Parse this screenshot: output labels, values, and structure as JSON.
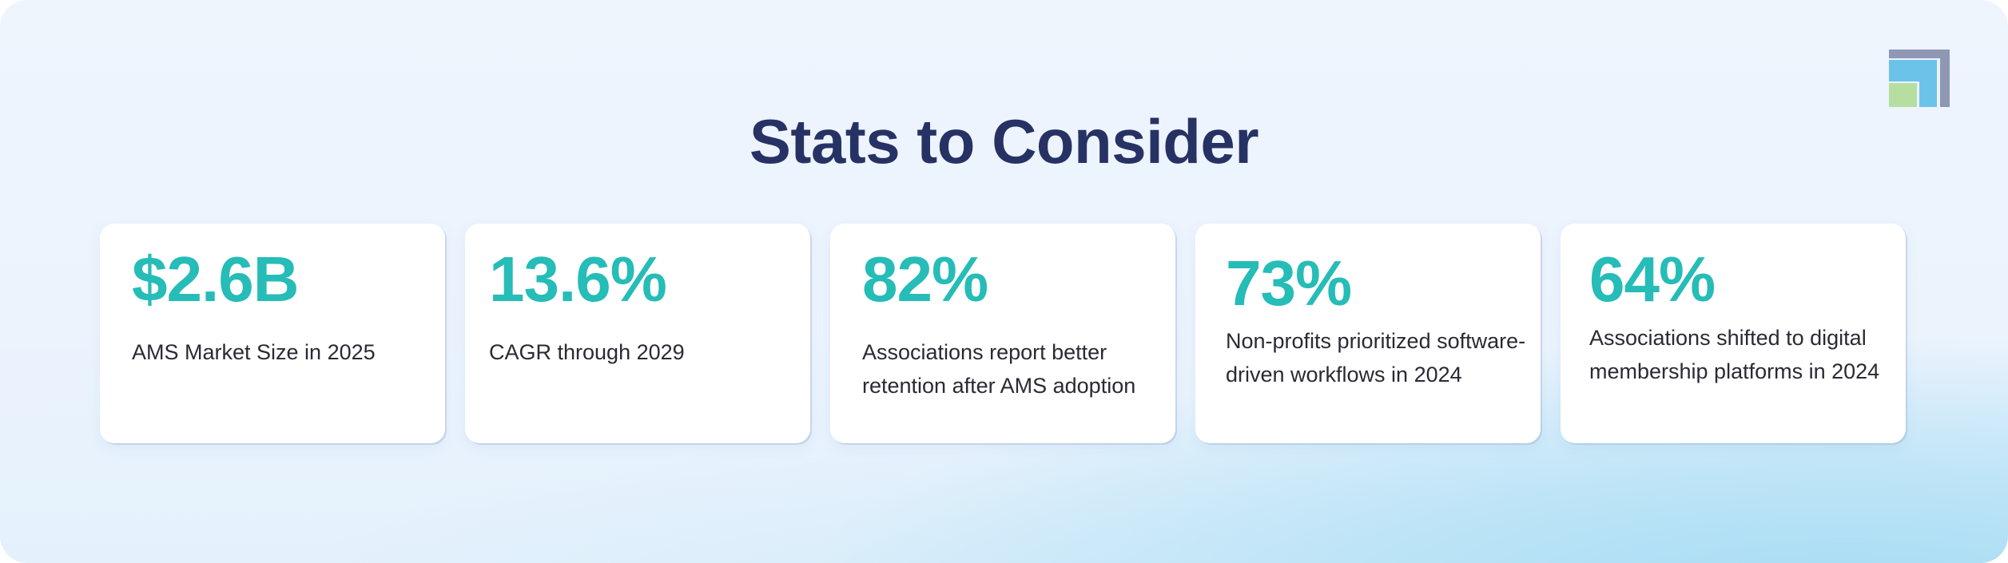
{
  "title": "Stats to Consider",
  "logo": {
    "icon": "stacked-squares-logo",
    "colors": {
      "back": "#8f97b5",
      "middle": "#6cc3ea",
      "front": "#b5dea0"
    }
  },
  "accent_color": "#26bcb7",
  "title_color": "#273264",
  "stats": [
    {
      "value": "$2.6B",
      "label": "AMS Market Size in 2025"
    },
    {
      "value": "13.6%",
      "label": "CAGR through 2029"
    },
    {
      "value": "82%",
      "label": "Associations report better retention after AMS adoption"
    },
    {
      "value": "73%",
      "label": "Non-profits prioritized software-driven workflows in 2024"
    },
    {
      "value": "64%",
      "label": "Associations shifted to digital membership platforms in 2024"
    }
  ]
}
